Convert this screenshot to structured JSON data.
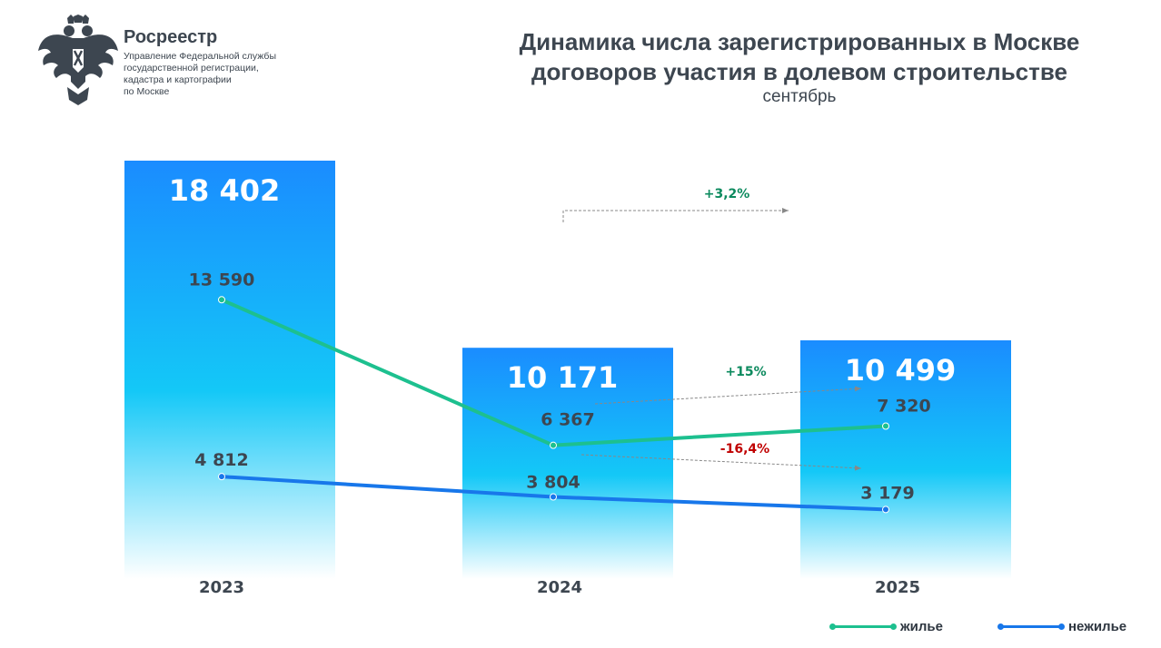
{
  "header": {
    "org_name": "Росреестр",
    "org_description": "Управление Федеральной службы\nгосударственной регистрации,\nкадастра и картографии\nпо Москве",
    "logo_icon": "double-headed-eagle-emblem-icon"
  },
  "title": "Динамика числа зарегистрированных в Москве\nдоговоров участия в долевом строительстве",
  "subtitle": "сентябрь",
  "colors": {
    "bar_top": "#1a8cff",
    "bar_mid": "#14c8f7",
    "bar_bottom": "#ffffff",
    "residential": "#1dc08f",
    "nonresidential": "#1877ea",
    "positive": "#0c8a5e",
    "negative": "#c00000",
    "text": "#3d4650"
  },
  "chart_data": {
    "type": "bar",
    "categories": [
      "2023",
      "2024",
      "2025"
    ],
    "total": {
      "values": [
        18402,
        10171,
        10499
      ],
      "labels": [
        "18 402",
        "10 171",
        "10 499"
      ]
    },
    "series": [
      {
        "name": "жилье",
        "values": [
          13590,
          6367,
          7320
        ],
        "labels": [
          "13 590",
          "6 367",
          "7 320"
        ],
        "change_label": "+15%"
      },
      {
        "name": "нежилье",
        "values": [
          4812,
          3804,
          3179
        ],
        "labels": [
          "4 812",
          "3 804",
          "3 179"
        ],
        "change_label": "-16,4%"
      }
    ],
    "total_change_label": "+3,2%",
    "legend_position": "bottom-right",
    "ylim": [
      0,
      18402
    ]
  }
}
